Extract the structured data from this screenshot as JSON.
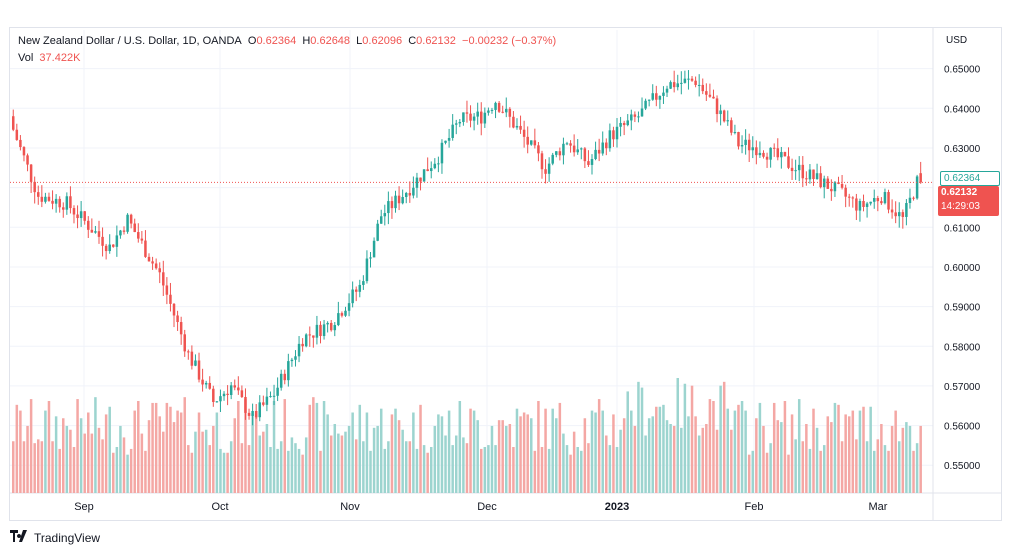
{
  "header": {
    "symbol": "New Zealand Dollar / U.S. Dollar, 1D, OANDA",
    "o_label": "O",
    "o_value": "0.62364",
    "h_label": "H",
    "h_value": "0.62648",
    "l_label": "L",
    "l_value": "0.62096",
    "c_label": "C",
    "c_value": "0.62132",
    "change": "−0.00232 (−0.37%)",
    "vol_label": "Vol",
    "vol_value": "37.422K",
    "currency": "USD"
  },
  "price_tags": {
    "open": "0.62364",
    "close": "0.62132",
    "countdown": "14:29:03"
  },
  "brand": {
    "name": "TradingView"
  },
  "colors": {
    "up": "#26a69a",
    "down": "#ef5350",
    "up_vol": "#9cd4cf",
    "down_vol": "#f4a7a4",
    "grid": "#f0f3fa",
    "text": "#131722"
  },
  "chart_data": {
    "type": "candlestick",
    "y_axis": {
      "ticks": [
        "0.55000",
        "0.56000",
        "0.57000",
        "0.58000",
        "0.59000",
        "0.60000",
        "0.61000",
        "0.62000",
        "0.63000",
        "0.64000",
        "0.65000"
      ],
      "range": [
        0.543,
        0.6547
      ]
    },
    "x_axis": {
      "labels": [
        "Sep",
        "Oct",
        "Nov",
        "Dec",
        "2023",
        "Feb",
        "Mar"
      ]
    },
    "ohlc": [],
    "volume": []
  }
}
